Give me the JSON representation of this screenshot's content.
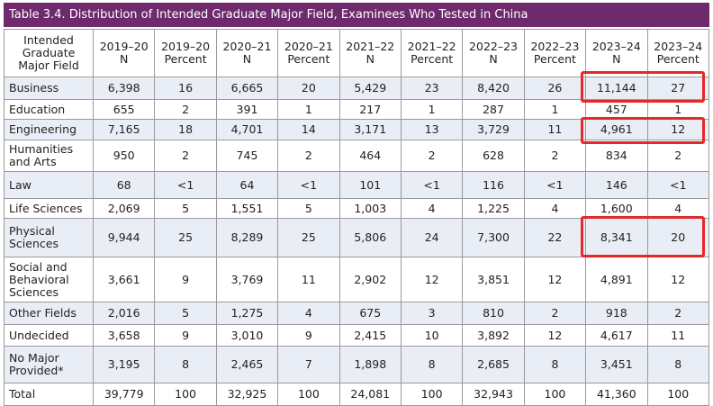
{
  "title": "Table 3.4. Distribution of Intended Graduate Major Field, Examinees Who Tested in China",
  "table": {
    "header": [
      "Intended\nGraduate\nMajor Field",
      "2019–20\nN",
      "2019–20\nPercent",
      "2020–21\nN",
      "2020–21\nPercent",
      "2021–22\nN",
      "2021–22\nPercent",
      "2022–23\nN",
      "2022–23\nPercent",
      "2023–24\nN",
      "2023–24\nPercent"
    ],
    "rows": [
      [
        "Business",
        "6,398",
        "16",
        "6,665",
        "20",
        "5,429",
        "23",
        "8,420",
        "26",
        "11,144",
        "27"
      ],
      [
        "Education",
        "655",
        "2",
        "391",
        "1",
        "217",
        "1",
        "287",
        "1",
        "457",
        "1"
      ],
      [
        "Engineering",
        "7,165",
        "18",
        "4,701",
        "14",
        "3,171",
        "13",
        "3,729",
        "11",
        "4,961",
        "12"
      ],
      [
        "Humanities\nand Arts",
        "950",
        "2",
        "745",
        "2",
        "464",
        "2",
        "628",
        "2",
        "834",
        "2"
      ],
      [
        "Law",
        "68",
        "<1",
        "64",
        "<1",
        "101",
        "<1",
        "116",
        "<1",
        "146",
        "<1"
      ],
      [
        "Life Sciences",
        "2,069",
        "5",
        "1,551",
        "5",
        "1,003",
        "4",
        "1,225",
        "4",
        "1,600",
        "4"
      ],
      [
        "Physical\nSciences",
        "9,944",
        "25",
        "8,289",
        "25",
        "5,806",
        "24",
        "7,300",
        "22",
        "8,341",
        "20"
      ],
      [
        "Social and\nBehavioral\nSciences",
        "3,661",
        "9",
        "3,769",
        "11",
        "2,902",
        "12",
        "3,851",
        "12",
        "4,891",
        "12"
      ],
      [
        "Other Fields",
        "2,016",
        "5",
        "1,275",
        "4",
        "675",
        "3",
        "810",
        "2",
        "918",
        "2"
      ],
      [
        "Undecided",
        "3,658",
        "9",
        "3,010",
        "9",
        "2,415",
        "10",
        "3,892",
        "12",
        "4,617",
        "11"
      ],
      [
        "No Major\nProvided*",
        "3,195",
        "8",
        "2,465",
        "7",
        "1,898",
        "8",
        "2,685",
        "8",
        "3,451",
        "8"
      ],
      [
        "Total",
        "39,779",
        "100",
        "32,925",
        "100",
        "24,081",
        "100",
        "32,943",
        "100",
        "41,360",
        "100"
      ]
    ]
  }
}
